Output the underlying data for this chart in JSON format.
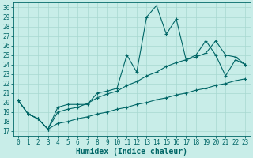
{
  "xlabel": "Humidex (Indice chaleur)",
  "bg_color": "#c8ede8",
  "line_color": "#006666",
  "grid_color": "#a8d8d0",
  "spine_color": "#006666",
  "xlim": [
    -0.5,
    23.5
  ],
  "ylim": [
    16.5,
    30.5
  ],
  "xticks": [
    0,
    1,
    2,
    3,
    4,
    5,
    6,
    7,
    8,
    9,
    10,
    11,
    12,
    13,
    14,
    15,
    16,
    17,
    18,
    19,
    20,
    21,
    22,
    23
  ],
  "yticks": [
    17,
    18,
    19,
    20,
    21,
    22,
    23,
    24,
    25,
    26,
    27,
    28,
    29,
    30
  ],
  "line1_x": [
    0,
    1,
    2,
    3,
    4,
    5,
    6,
    7,
    8,
    9,
    10,
    11,
    12,
    13,
    14,
    15,
    16,
    17,
    18,
    19,
    20,
    21,
    22,
    23
  ],
  "line1_y": [
    20.2,
    18.8,
    18.3,
    17.2,
    19.5,
    19.8,
    19.8,
    19.8,
    21.0,
    21.2,
    21.5,
    25.0,
    23.2,
    29.0,
    30.2,
    27.2,
    28.8,
    24.5,
    25.0,
    26.5,
    25.0,
    22.8,
    24.5,
    24.0
  ],
  "line2_x": [
    0,
    1,
    2,
    3,
    4,
    5,
    6,
    7,
    8,
    9,
    10,
    11,
    12,
    13,
    14,
    15,
    16,
    17,
    18,
    19,
    20,
    21,
    22,
    23
  ],
  "line2_y": [
    20.2,
    18.8,
    18.3,
    17.2,
    19.0,
    19.3,
    19.5,
    19.9,
    20.5,
    20.9,
    21.2,
    21.8,
    22.2,
    22.8,
    23.2,
    23.8,
    24.2,
    24.5,
    24.8,
    25.2,
    26.5,
    25.0,
    24.8,
    24.0
  ],
  "line3_x": [
    0,
    1,
    2,
    3,
    4,
    5,
    6,
    7,
    8,
    9,
    10,
    11,
    12,
    13,
    14,
    15,
    16,
    17,
    18,
    19,
    20,
    21,
    22,
    23
  ],
  "line3_y": [
    20.2,
    18.8,
    18.3,
    17.2,
    17.8,
    18.0,
    18.3,
    18.5,
    18.8,
    19.0,
    19.3,
    19.5,
    19.8,
    20.0,
    20.3,
    20.5,
    20.8,
    21.0,
    21.3,
    21.5,
    21.8,
    22.0,
    22.3,
    22.5
  ],
  "xlabel_fontsize": 7,
  "tick_fontsize": 5.5
}
